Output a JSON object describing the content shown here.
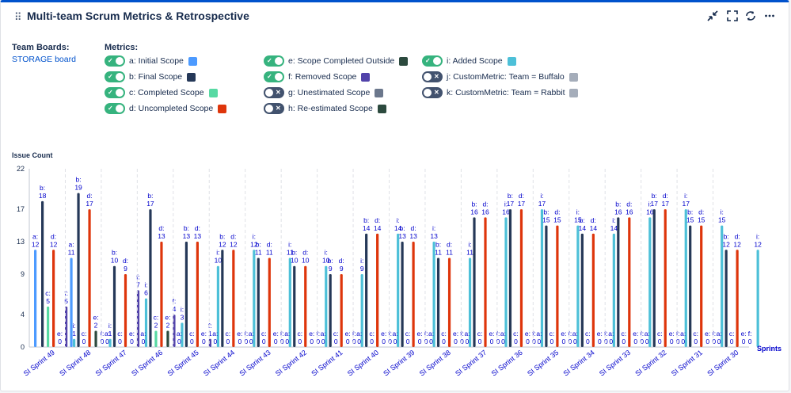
{
  "header": {
    "title": "Multi-team Scrum Metrics & Retrospective",
    "drag_icon": "drag-handle-icon",
    "controls": [
      "collapse-icon",
      "fullscreen-icon",
      "refresh-icon",
      "more-icon"
    ]
  },
  "team_boards": {
    "heading": "Team Boards:",
    "board": "STORAGE board"
  },
  "metrics": {
    "heading": "Metrics:",
    "items": [
      {
        "key": "a",
        "label": "a: Initial Scope",
        "on": true,
        "color": "#4c9aff"
      },
      {
        "key": "b",
        "label": "b: Final Scope",
        "on": true,
        "color": "#253858"
      },
      {
        "key": "c",
        "label": "c: Completed Scope",
        "on": true,
        "color": "#57d9a3"
      },
      {
        "key": "d",
        "label": "d: Uncompleted Scope",
        "on": true,
        "color": "#de350b"
      },
      {
        "key": "e",
        "label": "e: Scope Completed Outside",
        "on": true,
        "color": "#2c4a3e"
      },
      {
        "key": "f",
        "label": "f: Removed Scope",
        "on": true,
        "color": "#5243aa"
      },
      {
        "key": "g",
        "label": "g: Unestimated Scope",
        "on": false,
        "color": "#6b778c"
      },
      {
        "key": "h",
        "label": "h: Re-estimated Scope",
        "on": false,
        "color": "#2c4a3e"
      },
      {
        "key": "i",
        "label": "i: Added Scope",
        "on": true,
        "color": "#4dc0d8"
      },
      {
        "key": "j",
        "label": "j: CustomMetric: Team = Buffalo",
        "on": false,
        "color": "#a5adba"
      },
      {
        "key": "k",
        "label": "k: CustomMetric: Team = Rabbit",
        "on": false,
        "color": "#a5adba"
      }
    ]
  },
  "chart_data": {
    "type": "bar",
    "ylabel": "Issue Count",
    "xlabel": "Sprints",
    "ylim": [
      0,
      22
    ],
    "yticks": [
      0,
      4,
      9,
      13,
      17,
      22
    ],
    "series_keys": [
      "a",
      "b",
      "c",
      "d",
      "e",
      "f",
      "i"
    ],
    "series_names": [
      "a: Initial Scope",
      "b: Final Scope",
      "c: Completed Scope",
      "d: Uncompleted Scope",
      "e: Scope Completed Outside",
      "f: Removed Scope",
      "i: Added Scope"
    ],
    "series_colors": [
      "#4c9aff",
      "#253858",
      "#57d9a3",
      "#de350b",
      "#2c4a3e",
      "#5243aa",
      "#4dc0d8"
    ],
    "categories": [
      "SI Sprint 49",
      "SI Sprint 48",
      "SI Sprint 47",
      "SI Sprint 46",
      "SI Sprint 45",
      "SI Sprint 44",
      "SI Sprint 43",
      "SI Sprint 42",
      "SI Sprint 41",
      "SI Sprint 40",
      "SI Sprint 39",
      "SI Sprint 38",
      "SI Sprint 37",
      "SI Sprint 36",
      "SI Sprint 35",
      "SI Sprint 34",
      "SI Sprint 33",
      "SI Sprint 32",
      "SI Sprint 31",
      "SI Sprint 30"
    ],
    "values": [
      [
        12,
        18,
        5,
        12,
        0,
        5,
        1
      ],
      [
        11,
        19,
        0,
        17,
        2,
        0,
        1
      ],
      [
        0,
        10,
        0,
        9,
        0,
        7,
        6
      ],
      [
        0,
        17,
        2,
        13,
        2,
        4,
        3
      ],
      [
        0,
        13,
        0,
        13,
        0,
        1,
        10
      ],
      [
        0,
        12,
        0,
        12,
        0,
        0,
        12
      ],
      [
        0,
        11,
        0,
        11,
        0,
        0,
        11
      ],
      [
        0,
        10,
        0,
        10,
        0,
        0,
        10
      ],
      [
        0,
        9,
        0,
        9,
        0,
        0,
        9
      ],
      [
        0,
        14,
        0,
        14,
        0,
        0,
        14
      ],
      [
        0,
        13,
        0,
        13,
        0,
        0,
        13
      ],
      [
        0,
        11,
        0,
        11,
        0,
        0,
        11
      ],
      [
        0,
        16,
        0,
        16,
        0,
        0,
        16
      ],
      [
        0,
        17,
        0,
        17,
        0,
        0,
        17
      ],
      [
        0,
        15,
        0,
        15,
        0,
        0,
        15
      ],
      [
        0,
        14,
        0,
        14,
        0,
        0,
        14
      ],
      [
        0,
        16,
        0,
        16,
        0,
        0,
        16
      ],
      [
        0,
        17,
        0,
        17,
        0,
        0,
        17
      ],
      [
        0,
        15,
        0,
        15,
        0,
        0,
        15
      ],
      [
        0,
        12,
        0,
        12,
        0,
        0,
        12
      ]
    ]
  }
}
